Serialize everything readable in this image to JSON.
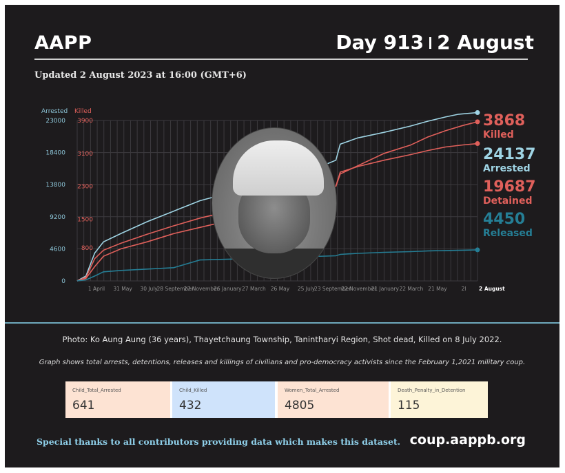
{
  "header": {
    "brand": "AAPP",
    "day": "Day 913",
    "date": "2 August"
  },
  "updated": "Updated 2 August 2023 at 16:00 (GMT+6)",
  "chart_data": {
    "type": "line",
    "left_axis_label": "Arrested",
    "right_axis_label": "Killed",
    "left_ticks": [
      "0",
      "4600",
      "9200",
      "13800",
      "18400",
      "23000"
    ],
    "right_ticks": [
      "800",
      "1500",
      "2300",
      "3100",
      "3900"
    ],
    "ylim_arrested": [
      0,
      23000
    ],
    "ylim_killed": [
      0,
      3900
    ],
    "x_labels": [
      "1 April",
      "31 May",
      "30 July",
      "28 September",
      "27 November",
      "26 January",
      "27 March",
      "26 May",
      "25 July",
      "23 September",
      "22 November",
      "21 January",
      "22 March",
      "21 May",
      "2l"
    ],
    "x_end_label": "2 August",
    "x_range": [
      0,
      913
    ],
    "series": [
      {
        "name": "Killed",
        "color": "#e0605b",
        "axis": "killed",
        "x": [
          0,
          20,
          40,
          60,
          100,
          160,
          220,
          280,
          340,
          400,
          450,
          500,
          540,
          590,
          600,
          640,
          700,
          760,
          800,
          840,
          880,
          913
        ],
        "y": [
          0,
          60,
          350,
          600,
          780,
          950,
          1150,
          1300,
          1450,
          1650,
          1800,
          2000,
          2150,
          2300,
          2600,
          2800,
          3100,
          3300,
          3500,
          3650,
          3780,
          3868
        ]
      },
      {
        "name": "Arrested",
        "color": "#9fd4e4",
        "axis": "arrested",
        "x": [
          0,
          20,
          40,
          60,
          100,
          160,
          220,
          280,
          340,
          400,
          450,
          500,
          540,
          590,
          600,
          640,
          700,
          760,
          800,
          840,
          870,
          913
        ],
        "y": [
          0,
          700,
          4000,
          5600,
          6800,
          8500,
          10000,
          11500,
          12500,
          13700,
          14500,
          15200,
          16000,
          17300,
          19600,
          20500,
          21300,
          22200,
          22900,
          23500,
          23900,
          24137
        ]
      },
      {
        "name": "Detained",
        "color": "#e0605b",
        "axis": "arrested",
        "x": [
          0,
          20,
          40,
          60,
          100,
          160,
          220,
          280,
          340,
          400,
          450,
          500,
          540,
          590,
          600,
          640,
          700,
          760,
          800,
          840,
          880,
          913
        ],
        "y": [
          0,
          500,
          3200,
          4400,
          5400,
          6700,
          7900,
          9000,
          9900,
          10800,
          11500,
          12100,
          12800,
          13600,
          15600,
          16400,
          17300,
          18100,
          18700,
          19200,
          19500,
          19687
        ]
      },
      {
        "name": "Released",
        "color": "#257e95",
        "axis": "arrested",
        "x": [
          0,
          20,
          40,
          60,
          100,
          160,
          220,
          280,
          340,
          400,
          450,
          500,
          540,
          590,
          600,
          640,
          700,
          760,
          800,
          840,
          880,
          913
        ],
        "y": [
          0,
          150,
          700,
          1300,
          1500,
          1700,
          1900,
          3000,
          3100,
          3200,
          3300,
          3400,
          3500,
          3600,
          3800,
          3950,
          4100,
          4200,
          4300,
          4350,
          4400,
          4450
        ]
      }
    ],
    "end_labels": [
      {
        "value": "3868",
        "name": "Killed",
        "color": "#e0605b"
      },
      {
        "value": "24137",
        "name": "Arrested",
        "color": "#9fd4e4"
      },
      {
        "value": "19687",
        "name": "Detained",
        "color": "#e0605b"
      },
      {
        "value": "4450",
        "name": "Released",
        "color": "#257e95"
      }
    ],
    "grid": true
  },
  "photo_caption": "Photo: Ko Aung Aung (36 years), Thayetchaung Township, Tanintharyi Region, Shot dead, Killed on 8 July 2022.",
  "graph_note": "Graph shows total arrests, detentions, releases and killings of civilians and pro-democracy activists since the February 1,2021 military coup.",
  "stats": [
    {
      "label": "Child_Total_Arrested",
      "value": "641",
      "bg": "#fde3d3"
    },
    {
      "label": "Child_Killed",
      "value": "432",
      "bg": "#cfe3fb"
    },
    {
      "label": "Women_Total_Arrested",
      "value": "4805",
      "bg": "#fde3d3"
    },
    {
      "label": "Death_Penalty_in_Detention",
      "value": "115",
      "bg": "#fdf4d8"
    }
  ],
  "footer": {
    "thanks": "Special thanks to all contributors providing data which makes this dataset.",
    "site": "coup.aappb.org"
  }
}
